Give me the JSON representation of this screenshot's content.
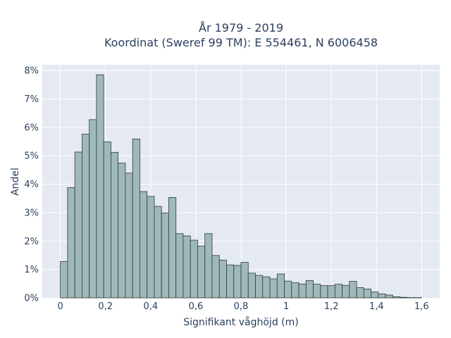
{
  "chart_data": {
    "type": "bar",
    "title": "År 1979 - 2019",
    "subtitle": "Koordinat (Sweref 99 TM): E 554461, N 6006458",
    "xlabel": "Signifikant våghöjd (m)",
    "ylabel": "Andel",
    "bin_width": 0.032,
    "x_start": 0.0,
    "xlim": [
      -0.08,
      1.68
    ],
    "ylim": [
      0,
      8.2
    ],
    "x_ticks": [
      0,
      0.2,
      0.4,
      0.6,
      0.8,
      1,
      1.2,
      1.4,
      1.6
    ],
    "x_tick_labels": [
      "0",
      "0,2",
      "0,4",
      "0,6",
      "0,8",
      "1",
      "1,2",
      "1,4",
      "1,6"
    ],
    "y_ticks": [
      0,
      1,
      2,
      3,
      4,
      5,
      6,
      7,
      8
    ],
    "y_tick_labels": [
      "0%",
      "1%",
      "2%",
      "3%",
      "4%",
      "5%",
      "6%",
      "7%",
      "8%"
    ],
    "values": [
      1.28,
      3.88,
      5.13,
      5.76,
      6.27,
      7.85,
      5.49,
      5.12,
      4.74,
      4.39,
      5.59,
      3.74,
      3.57,
      3.22,
      2.99,
      3.53,
      2.26,
      2.18,
      2.03,
      1.82,
      2.26,
      1.49,
      1.33,
      1.16,
      1.14,
      1.25,
      0.87,
      0.79,
      0.74,
      0.67,
      0.84,
      0.59,
      0.53,
      0.49,
      0.61,
      0.48,
      0.43,
      0.43,
      0.48,
      0.44,
      0.58,
      0.36,
      0.31,
      0.21,
      0.14,
      0.1,
      0.04,
      0.02,
      0.01,
      0.01
    ],
    "grid": true,
    "legend": "none",
    "colors": {
      "bar_fill": "#9fb9b8",
      "bar_stroke": "#2f3b3b",
      "plot_bg": "#e5e9f2",
      "grid": "#ffffff"
    }
  }
}
